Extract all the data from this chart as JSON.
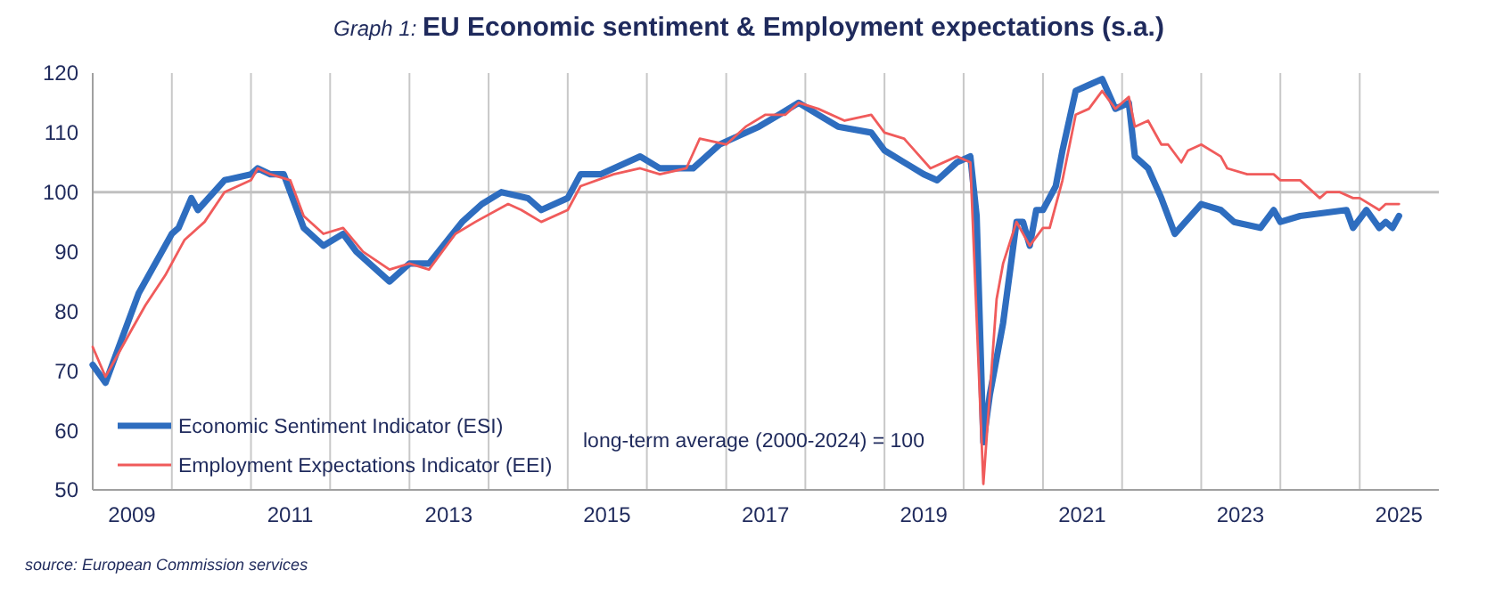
{
  "chart_data": {
    "type": "line",
    "subtitle": "Graph 1:",
    "title": "EU Economic sentiment & Employment expectations (s.a.)",
    "annotations": [
      "long-term average (2000-2024) = 100",
      "source: European Commission services"
    ],
    "xlim": [
      "2009-01",
      "2026-01"
    ],
    "xticks": [
      {
        "value": "2009-07",
        "label": "2009"
      },
      {
        "value": "2010-01",
        "label": null
      },
      {
        "value": "2011-01",
        "label": null
      },
      {
        "value": "2011-07",
        "label": "2011"
      },
      {
        "value": "2012-01",
        "label": null
      },
      {
        "value": "2013-01",
        "label": null
      },
      {
        "value": "2013-07",
        "label": "2013"
      },
      {
        "value": "2014-01",
        "label": null
      },
      {
        "value": "2015-01",
        "label": null
      },
      {
        "value": "2015-07",
        "label": "2015"
      },
      {
        "value": "2016-01",
        "label": null
      },
      {
        "value": "2017-01",
        "label": null
      },
      {
        "value": "2017-07",
        "label": "2017"
      },
      {
        "value": "2018-01",
        "label": null
      },
      {
        "value": "2019-01",
        "label": null
      },
      {
        "value": "2019-07",
        "label": "2019"
      },
      {
        "value": "2020-01",
        "label": null
      },
      {
        "value": "2021-01",
        "label": null
      },
      {
        "value": "2021-07",
        "label": "2021"
      },
      {
        "value": "2022-01",
        "label": null
      },
      {
        "value": "2023-01",
        "label": null
      },
      {
        "value": "2023-07",
        "label": "2023"
      },
      {
        "value": "2024-01",
        "label": null
      },
      {
        "value": "2025-01",
        "label": null
      },
      {
        "value": "2025-07",
        "label": "2025"
      }
    ],
    "ylim": [
      50,
      120
    ],
    "yticks": [
      50,
      60,
      70,
      80,
      90,
      100,
      110,
      120
    ],
    "grid": "x",
    "legend": "bottom left",
    "marker": "none",
    "line_style": "solid",
    "ref_lines": [
      {
        "axis": "y",
        "value": 100,
        "color": "#c0c0c0"
      }
    ],
    "series": [
      {
        "name": "Economic Sentiment Indicator (ESI)",
        "color": "#2e6dbf",
        "x": [
          "2009-01",
          "2009-03",
          "2009-04",
          "2009-08",
          "2010-01",
          "2010-02",
          "2010-04",
          "2010-05",
          "2010-09",
          "2011-01",
          "2011-02",
          "2011-04",
          "2011-06",
          "2011-09",
          "2011-12",
          "2012-03",
          "2012-05",
          "2012-10",
          "2013-01",
          "2013-04",
          "2013-09",
          "2013-12",
          "2014-03",
          "2014-07",
          "2014-09",
          "2015-01",
          "2015-03",
          "2015-06",
          "2015-12",
          "2016-03",
          "2016-08",
          "2016-12",
          "2017-06",
          "2017-09",
          "2017-12",
          "2018-03",
          "2018-06",
          "2018-11",
          "2019-01",
          "2019-07",
          "2019-09",
          "2019-12",
          "2020-02",
          "2020-03",
          "2020-04",
          "2020-05",
          "2020-07",
          "2020-09",
          "2020-10",
          "2020-11",
          "2020-12",
          "2021-01",
          "2021-03",
          "2021-04",
          "2021-06",
          "2021-08",
          "2021-10",
          "2021-12",
          "2022-02",
          "2022-03",
          "2022-05",
          "2022-07",
          "2022-09",
          "2023-01",
          "2023-04",
          "2023-06",
          "2023-10",
          "2023-12",
          "2024-01",
          "2024-04",
          "2024-11",
          "2024-12",
          "2025-02",
          "2025-04",
          "2025-05",
          "2025-06",
          "2025-07"
        ],
        "values": [
          71,
          68,
          71,
          83,
          93,
          94,
          99,
          97,
          102,
          103,
          104,
          103,
          103,
          94,
          91,
          93,
          90,
          85,
          88,
          88,
          95,
          98,
          100,
          99,
          97,
          99,
          103,
          103,
          106,
          104,
          104,
          108,
          111,
          113,
          115,
          113,
          111,
          110,
          107,
          103,
          102,
          105,
          106,
          96,
          58,
          66,
          78,
          95,
          95,
          91,
          97,
          97,
          101,
          107,
          117,
          118,
          119,
          114,
          115,
          106,
          104,
          99,
          93,
          98,
          97,
          95,
          94,
          97,
          95,
          96,
          97,
          94,
          97,
          94,
          95,
          94,
          96
        ]
      },
      {
        "name": "Employment Expectations Indicator (EEI)",
        "color": "#f05b5b",
        "x": [
          "2009-01",
          "2009-03",
          "2009-07",
          "2009-09",
          "2009-12",
          "2010-03",
          "2010-06",
          "2010-09",
          "2011-01",
          "2011-02",
          "2011-04",
          "2011-07",
          "2011-09",
          "2011-12",
          "2012-03",
          "2012-06",
          "2012-10",
          "2013-01",
          "2013-04",
          "2013-08",
          "2013-11",
          "2014-04",
          "2014-06",
          "2014-09",
          "2015-01",
          "2015-03",
          "2015-08",
          "2015-12",
          "2016-03",
          "2016-07",
          "2016-09",
          "2017-01",
          "2017-04",
          "2017-07",
          "2017-10",
          "2017-12",
          "2018-03",
          "2018-07",
          "2018-11",
          "2019-01",
          "2019-04",
          "2019-08",
          "2019-12",
          "2020-02",
          "2020-04",
          "2020-06",
          "2020-07",
          "2020-09",
          "2020-11",
          "2021-01",
          "2021-02",
          "2021-04",
          "2021-06",
          "2021-08",
          "2021-10",
          "2021-12",
          "2022-02",
          "2022-03",
          "2022-05",
          "2022-07",
          "2022-08",
          "2022-10",
          "2022-11",
          "2023-01",
          "2023-04",
          "2023-05",
          "2023-08",
          "2023-12",
          "2024-01",
          "2024-04",
          "2024-07",
          "2024-08",
          "2024-10",
          "2024-12",
          "2025-01",
          "2025-04",
          "2025-05",
          "2025-07"
        ],
        "values": [
          74,
          69,
          77,
          81,
          86,
          92,
          95,
          100,
          102,
          104,
          103,
          102,
          96,
          93,
          94,
          90,
          87,
          88,
          87,
          93,
          95,
          98,
          97,
          95,
          97,
          101,
          103,
          104,
          103,
          104,
          109,
          108,
          111,
          113,
          113,
          115,
          114,
          112,
          113,
          110,
          109,
          104,
          106,
          105,
          51,
          82,
          88,
          95,
          91,
          94,
          94,
          102,
          113,
          114,
          117,
          114,
          116,
          111,
          112,
          108,
          108,
          105,
          107,
          108,
          106,
          104,
          103,
          103,
          102,
          102,
          99,
          100,
          100,
          99,
          99,
          97,
          98,
          98
        ]
      }
    ]
  }
}
